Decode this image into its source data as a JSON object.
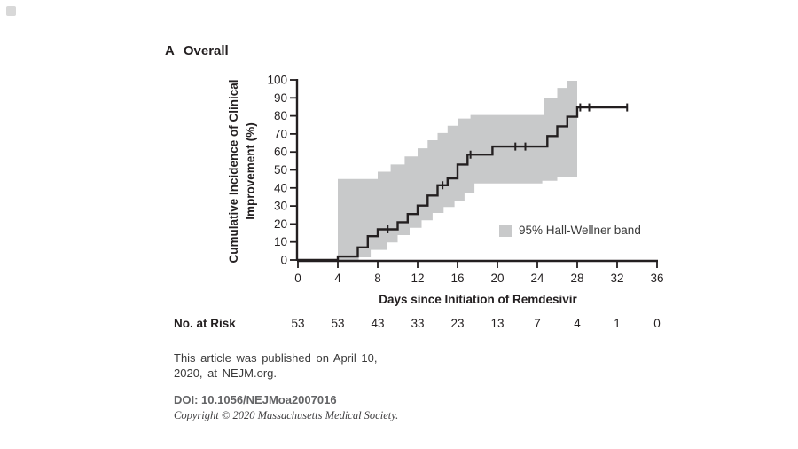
{
  "panel": {
    "letter": "A",
    "title": "Overall"
  },
  "chart_data": {
    "type": "line",
    "subtype": "kaplan-meier-step-curve-with-confidence-band",
    "title": "A Overall",
    "xlabel": "Days since Initiation of Remdesivir",
    "ylabel": "Cumulative Incidence of Clinical Improvement (%)",
    "ylabel_lines": [
      "Cumulative Incidence of Clinical",
      "Improvement (%)"
    ],
    "xlim": [
      0,
      36
    ],
    "ylim": [
      0,
      100
    ],
    "xticks": [
      0,
      4,
      8,
      12,
      16,
      20,
      24,
      28,
      32,
      36
    ],
    "yticks": [
      0,
      10,
      20,
      30,
      40,
      50,
      60,
      70,
      80,
      90,
      100
    ],
    "grid": false,
    "legend": {
      "label": "95% Hall-Wellner band",
      "position": "inside-lower-right",
      "swatch_color": "#c8c9ca"
    },
    "series": [
      {
        "name": "cumulative-incidence-of-clinical-improvement",
        "color": "#231f20",
        "start": [
          0,
          0
        ],
        "steps": [
          [
            4,
            1.9
          ],
          [
            6,
            7.0
          ],
          [
            7,
            13.2
          ],
          [
            8,
            17.0
          ],
          [
            10,
            21.0
          ],
          [
            11,
            25.5
          ],
          [
            12,
            30.2
          ],
          [
            13,
            35.8
          ],
          [
            14,
            41.5
          ],
          [
            15,
            45.3
          ],
          [
            16,
            53.0
          ],
          [
            17,
            58.5
          ],
          [
            19.5,
            63.0
          ],
          [
            25,
            68.8
          ],
          [
            26,
            74.2
          ],
          [
            27,
            79.5
          ],
          [
            28,
            84.7
          ]
        ],
        "end_day": 33,
        "censor_marks": [
          [
            9,
            17.0
          ],
          [
            14.5,
            41.5
          ],
          [
            17.3,
            58.5
          ],
          [
            21.8,
            63.0
          ],
          [
            22.8,
            63.0
          ],
          [
            28.3,
            84.7
          ],
          [
            29.2,
            84.7
          ],
          [
            33,
            84.7
          ]
        ]
      }
    ],
    "band": {
      "name": "95% Hall-Wellner band",
      "color": "#c8c9ca",
      "upper_steps": [
        [
          4,
          45
        ],
        [
          8,
          49
        ],
        [
          9.3,
          53
        ],
        [
          10.7,
          57.5
        ],
        [
          12,
          62
        ],
        [
          13,
          66.5
        ],
        [
          14,
          70.5
        ],
        [
          15,
          74.5
        ],
        [
          16,
          78.5
        ],
        [
          17.3,
          80.5
        ],
        [
          24.7,
          90
        ],
        [
          26,
          95.5
        ],
        [
          27,
          99.5
        ]
      ],
      "lower_steps": [
        [
          4,
          0
        ],
        [
          6.1,
          1.5
        ],
        [
          7.3,
          5.6
        ],
        [
          8.9,
          9.7
        ],
        [
          10,
          13.8
        ],
        [
          11.2,
          17.9
        ],
        [
          12.4,
          22
        ],
        [
          13.5,
          26.1
        ],
        [
          14.6,
          29.4
        ],
        [
          15.7,
          33
        ],
        [
          16.7,
          37
        ],
        [
          17.7,
          42.5
        ],
        [
          24.5,
          44
        ],
        [
          26,
          46
        ]
      ],
      "end_day": 28
    }
  },
  "risk_table": {
    "label": "No. at Risk",
    "days": [
      0,
      4,
      8,
      12,
      16,
      20,
      24,
      28,
      32,
      36
    ],
    "values": [
      "53",
      "53",
      "43",
      "33",
      "23",
      "13",
      "7",
      "4",
      "1",
      "0"
    ]
  },
  "footer": {
    "note_line1": "This article was published on April 10,",
    "note_line2": "2020, at NEJM.org.",
    "doi": "DOI: 10.1056/NEJMoa2007016",
    "copyright": "Copyright © 2020 Massachusetts Medical Society."
  }
}
